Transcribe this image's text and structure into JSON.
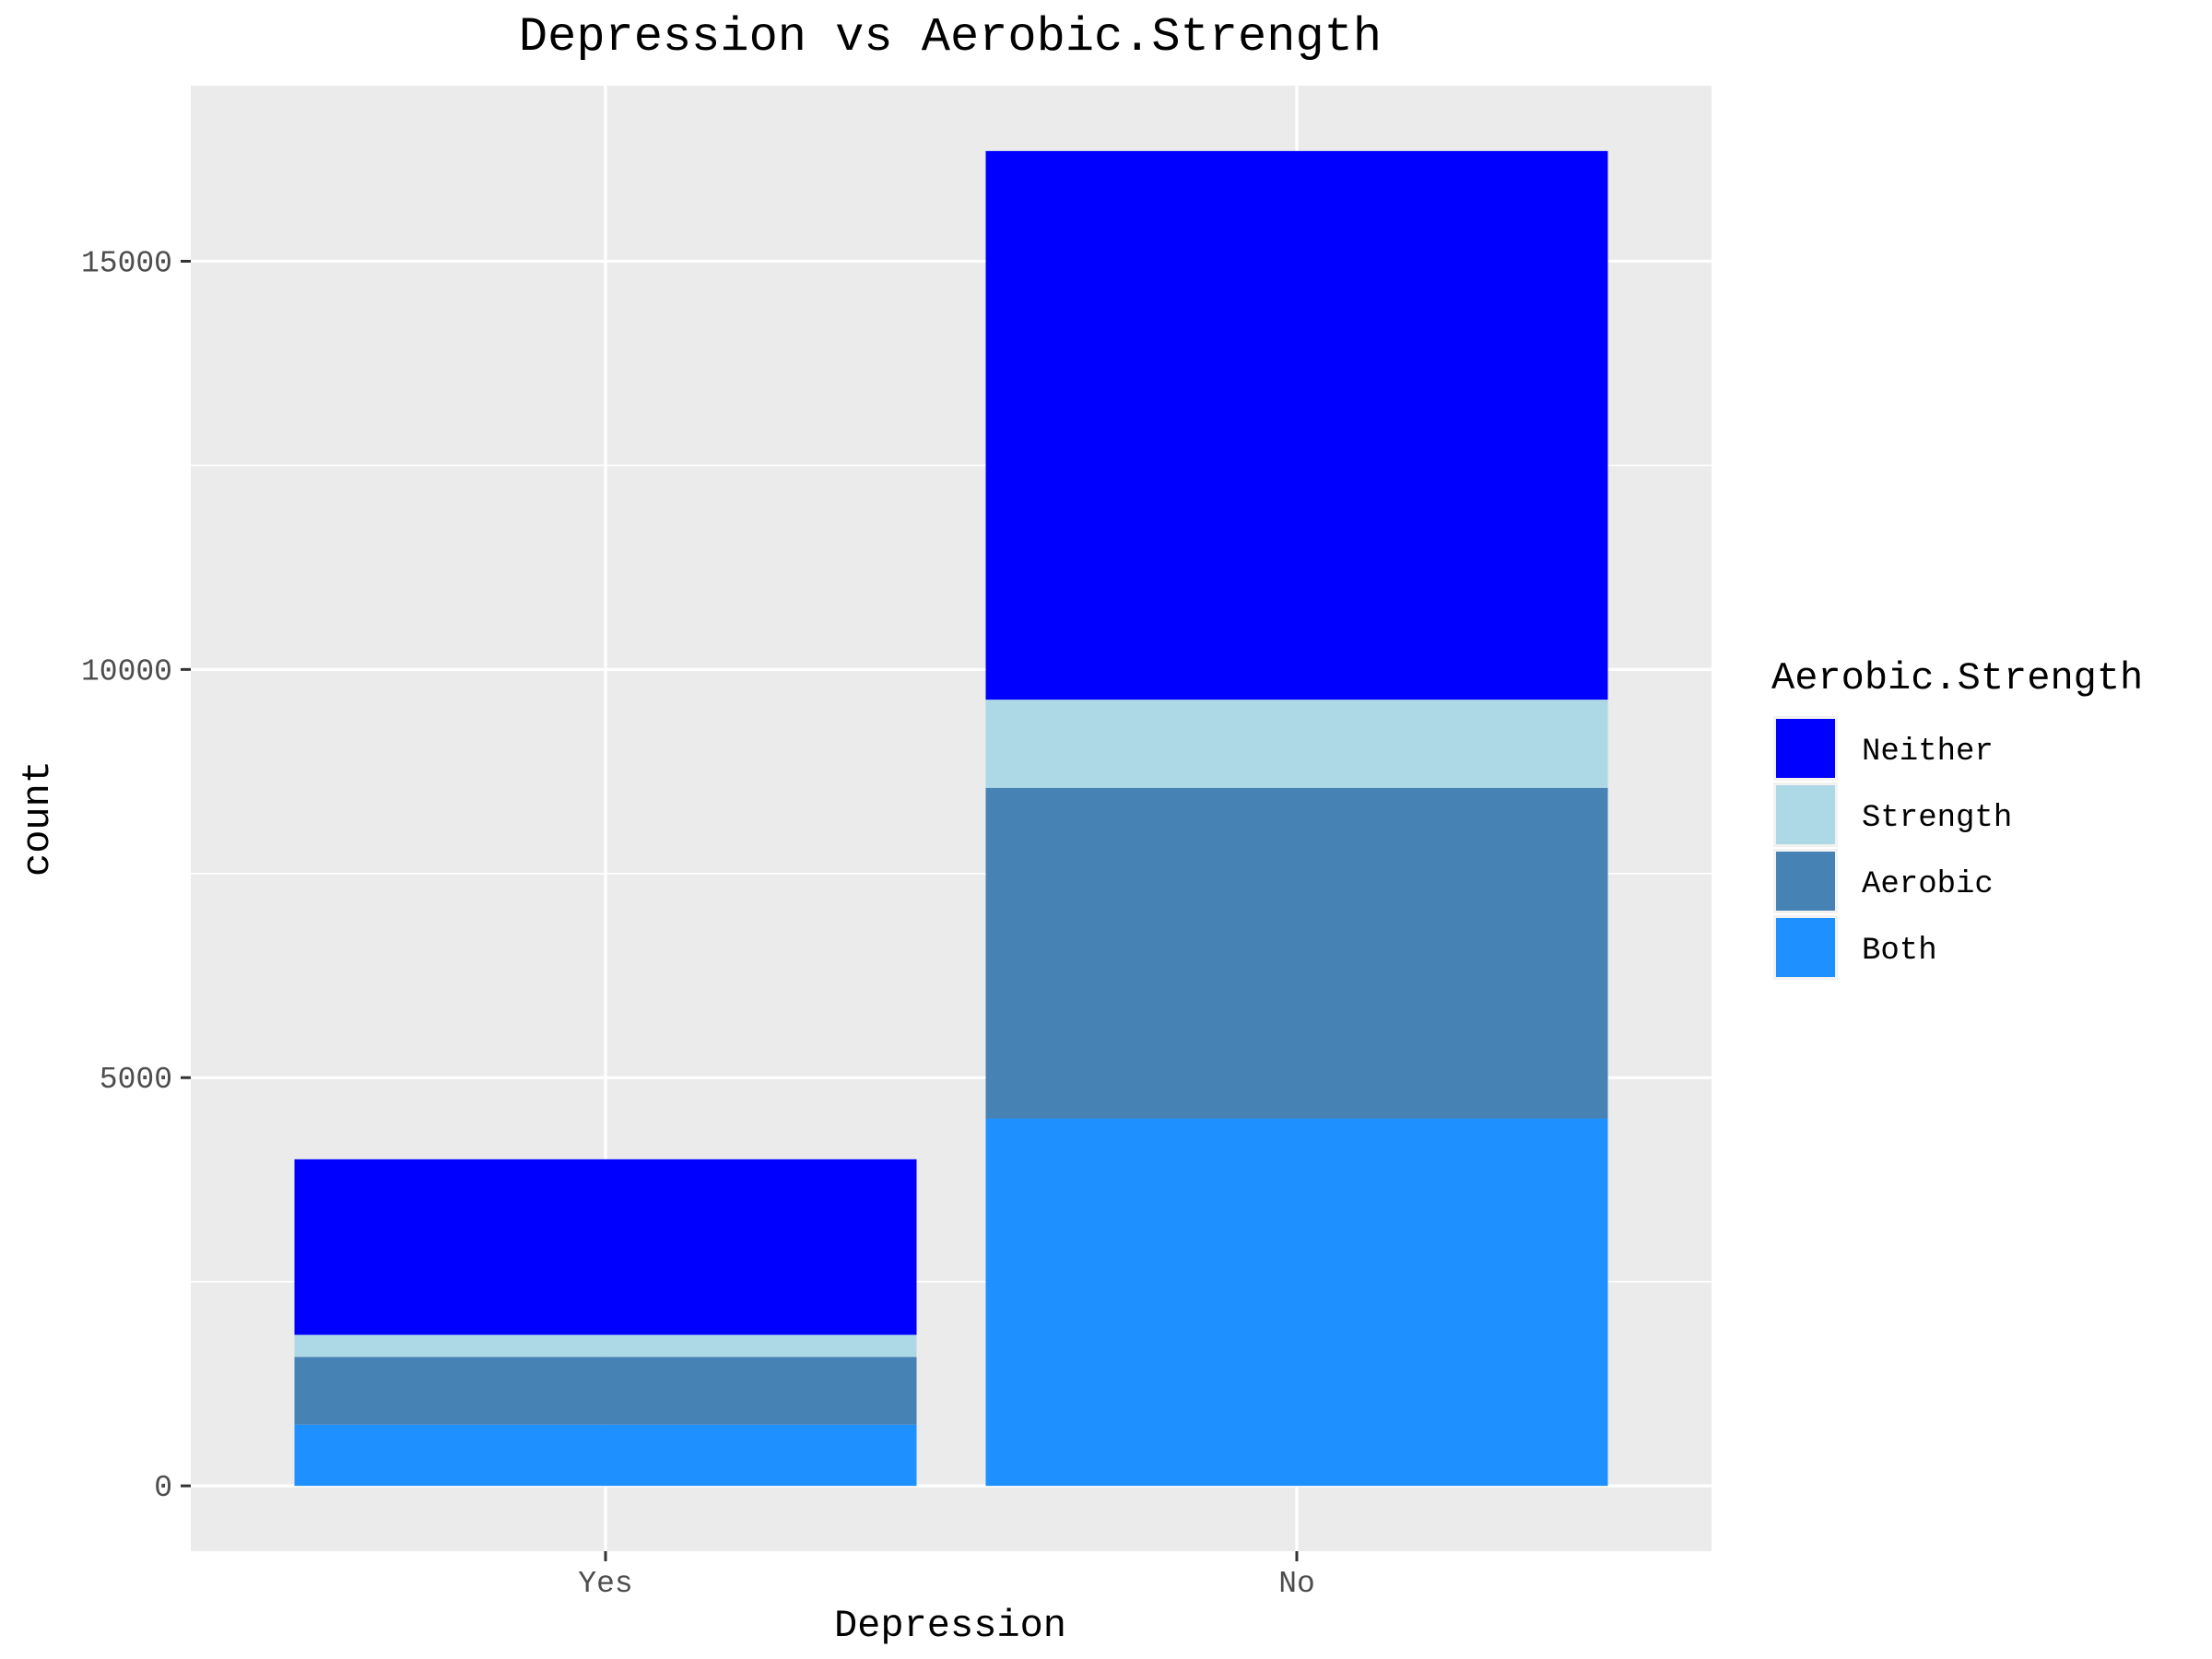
{
  "chart_data": {
    "type": "bar",
    "stacked": true,
    "title": "Depression vs Aerobic.Strength",
    "xlabel": "Depression",
    "ylabel": "count",
    "categories": [
      "Yes",
      "No"
    ],
    "ylim": [
      -800,
      17150
    ],
    "yticks": [
      0,
      5000,
      10000,
      15000
    ],
    "y_tick_labels": [
      "0",
      "5000",
      "10000",
      "15000"
    ],
    "grid": true,
    "legend": {
      "title": "Aerobic.Strength",
      "placement": "right",
      "entries": [
        "Neither",
        "Strength",
        "Aerobic",
        "Both"
      ]
    },
    "series": [
      {
        "name": "Both",
        "color": "#1E90FF",
        "values": [
          750,
          4500
        ]
      },
      {
        "name": "Aerobic",
        "color": "#4682B4",
        "values": [
          830,
          4050
        ]
      },
      {
        "name": "Strength",
        "color": "#ADD8E6",
        "values": [
          270,
          1080
        ]
      },
      {
        "name": "Neither",
        "color": "#0000FF",
        "values": [
          2150,
          6720
        ]
      }
    ],
    "colors": {
      "panel_background": "#EBEBEB",
      "grid": "#FFFFFF",
      "text": "#000000",
      "tick_text": "#4D4D4D"
    }
  }
}
